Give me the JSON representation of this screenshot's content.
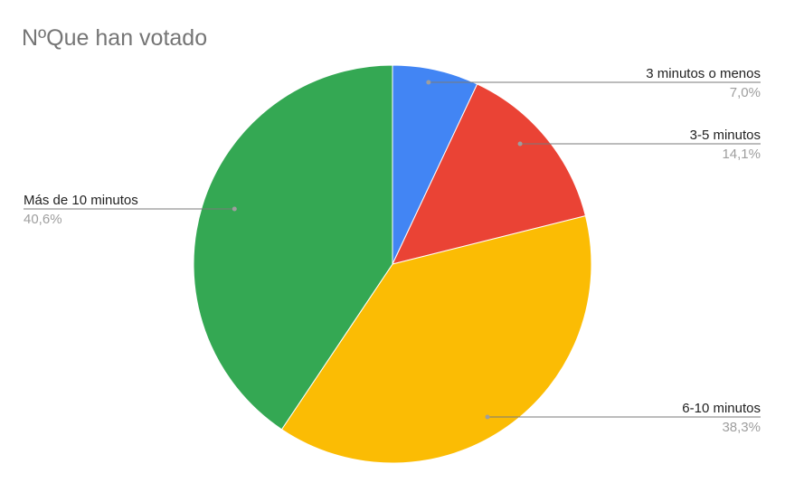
{
  "chart_data": {
    "type": "pie",
    "title": "NºQue han votado",
    "slices": [
      {
        "label": "3 minutos o menos",
        "value": 7.0,
        "percent_label": "7,0%",
        "color": "#4285F4"
      },
      {
        "label": "3-5 minutos",
        "value": 14.1,
        "percent_label": "14,1%",
        "color": "#EA4335"
      },
      {
        "label": "6-10 minutos",
        "value": 38.3,
        "percent_label": "38,3%",
        "color": "#FBBC04"
      },
      {
        "label": "Más de 10 minutos",
        "value": 40.6,
        "percent_label": "40,6%",
        "color": "#34A853"
      }
    ],
    "legend": "none",
    "labels": "outside-with-leader-lines"
  }
}
